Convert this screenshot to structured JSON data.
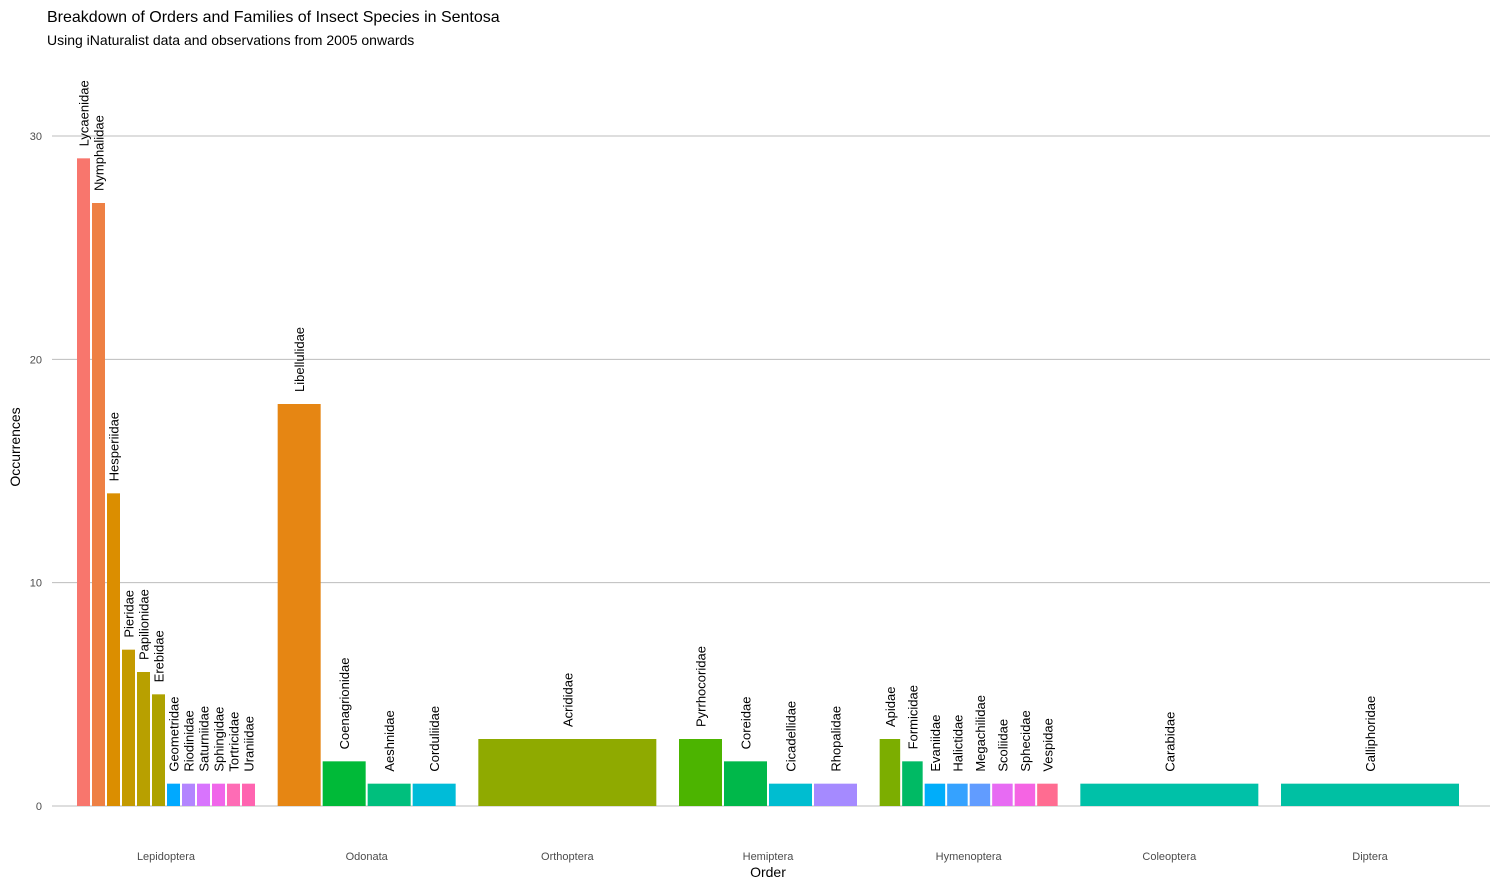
{
  "chart_data": {
    "type": "bar",
    "title": "Breakdown of Orders and Families of Insect Species in Sentosa",
    "subtitle": "Using iNaturalist data and observations from 2005 onwards",
    "xlabel": "Order",
    "ylabel": "Occurrences",
    "ylim": [
      0,
      30
    ],
    "yticks": [
      0,
      10,
      20,
      30
    ],
    "grid": true,
    "categories": [
      "Lepidoptera",
      "Odonata",
      "Orthoptera",
      "Hemiptera",
      "Hymenoptera",
      "Coleoptera",
      "Diptera"
    ],
    "groups": [
      {
        "order": "Lepidoptera",
        "families": [
          {
            "name": "Lycaenidae",
            "value": 29,
            "color": "#F8766D"
          },
          {
            "name": "Nymphalidae",
            "value": 27,
            "color": "#EE8044"
          },
          {
            "name": "Hesperiidae",
            "value": 14,
            "color": "#DB8E00"
          },
          {
            "name": "Pieridae",
            "value": 7,
            "color": "#C49A00"
          },
          {
            "name": "Papilionidae",
            "value": 6,
            "color": "#B8A000"
          },
          {
            "name": "Erebidae",
            "value": 5,
            "color": "#AEA200"
          },
          {
            "name": "Geometridae",
            "value": 1,
            "color": "#00A9FF"
          },
          {
            "name": "Riodinidae",
            "value": 1,
            "color": "#B385FF"
          },
          {
            "name": "Saturniidae",
            "value": 1,
            "color": "#D874FD"
          },
          {
            "name": "Sphingidae",
            "value": 1,
            "color": "#F066EA"
          },
          {
            "name": "Tortricidae",
            "value": 1,
            "color": "#FE6CB5"
          },
          {
            "name": "Uraniidae",
            "value": 1,
            "color": "#FF64B0"
          }
        ]
      },
      {
        "order": "Odonata",
        "families": [
          {
            "name": "Libellulidae",
            "value": 18,
            "color": "#E68613"
          },
          {
            "name": "Coenagrionidae",
            "value": 2,
            "color": "#00BA38"
          },
          {
            "name": "Aeshnidae",
            "value": 1,
            "color": "#00BF7D"
          },
          {
            "name": "Corduliidae",
            "value": 1,
            "color": "#00BCD8"
          }
        ]
      },
      {
        "order": "Orthoptera",
        "families": [
          {
            "name": "Acrididae",
            "value": 3,
            "color": "#8FAA00"
          }
        ]
      },
      {
        "order": "Hemiptera",
        "families": [
          {
            "name": "Pyrrhocoridae",
            "value": 3,
            "color": "#4CB400"
          },
          {
            "name": "Coreidae",
            "value": 2,
            "color": "#00B84A"
          },
          {
            "name": "Cicadellidae",
            "value": 1,
            "color": "#00BDD0"
          },
          {
            "name": "Rhopalidae",
            "value": 1,
            "color": "#A58AFF"
          }
        ]
      },
      {
        "order": "Hymenoptera",
        "families": [
          {
            "name": "Apidae",
            "value": 3,
            "color": "#7CAE00"
          },
          {
            "name": "Formicidae",
            "value": 2,
            "color": "#00BA64"
          },
          {
            "name": "Evaniidae",
            "value": 1,
            "color": "#00ADFA"
          },
          {
            "name": "Halictidae",
            "value": 1,
            "color": "#35A2FF"
          },
          {
            "name": "Megachilidae",
            "value": 1,
            "color": "#619CFF"
          },
          {
            "name": "Scoliidae",
            "value": 1,
            "color": "#E76BF3"
          },
          {
            "name": "Sphecidae",
            "value": 1,
            "color": "#F564E3"
          },
          {
            "name": "Vespidae",
            "value": 1,
            "color": "#FF6C91"
          }
        ]
      },
      {
        "order": "Coleoptera",
        "families": [
          {
            "name": "Carabidae",
            "value": 1,
            "color": "#00C1A8"
          }
        ]
      },
      {
        "order": "Diptera",
        "families": [
          {
            "name": "Calliphoridae",
            "value": 1,
            "color": "#00C0A3"
          }
        ]
      }
    ]
  }
}
